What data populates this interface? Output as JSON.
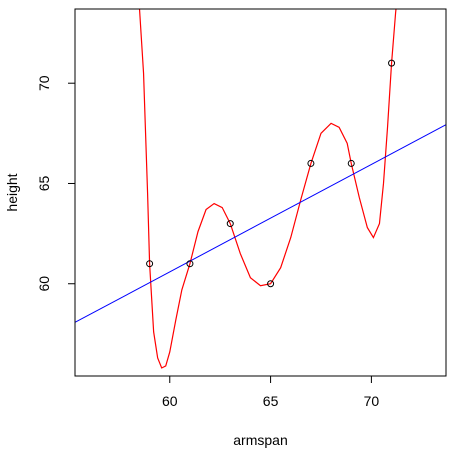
{
  "chart_data": {
    "type": "scatter",
    "title": "",
    "xlabel": "armspan",
    "ylabel": "height",
    "xlim": [
      55.3,
      73.7
    ],
    "ylim": [
      55.4,
      73.7
    ],
    "xticks": [
      60,
      65,
      70
    ],
    "yticks": [
      60,
      65,
      70
    ],
    "xtick_labels": [
      "60",
      "65",
      "70"
    ],
    "ytick_labels": [
      "60",
      "65",
      "70"
    ],
    "grid": false,
    "legend": "none",
    "points": [
      {
        "x": 59,
        "y": 61
      },
      {
        "x": 61,
        "y": 61
      },
      {
        "x": 63,
        "y": 63
      },
      {
        "x": 65,
        "y": 60
      },
      {
        "x": 67,
        "y": 66
      },
      {
        "x": 69,
        "y": 66
      },
      {
        "x": 71,
        "y": 71
      }
    ],
    "regression_line": {
      "color": "#0000ff",
      "intercept": 28.45,
      "slope": 0.5357
    },
    "fit_curve": {
      "color": "#ff0000",
      "x": [
        58.5,
        58.7,
        58.9,
        59,
        59.2,
        59.4,
        59.6,
        59.8,
        60,
        60.3,
        60.6,
        61,
        61.4,
        61.8,
        62.2,
        62.6,
        63,
        63.5,
        64,
        64.5,
        65,
        65.5,
        66,
        66.5,
        67,
        67.5,
        68,
        68.4,
        68.8,
        69,
        69.4,
        69.8,
        70.1,
        70.4,
        70.6,
        70.8,
        71,
        71.2,
        71.3
      ],
      "y": [
        73.7,
        70.5,
        64.5,
        61,
        57.6,
        56.3,
        55.8,
        55.9,
        56.6,
        58.2,
        59.7,
        61,
        62.6,
        63.7,
        64,
        63.8,
        63,
        61.5,
        60.3,
        59.9,
        60,
        60.8,
        62.3,
        64.2,
        66,
        67.5,
        68,
        67.8,
        67,
        66,
        64.3,
        62.8,
        62.3,
        63,
        65,
        67.8,
        71,
        73.5,
        74.5
      ]
    }
  }
}
